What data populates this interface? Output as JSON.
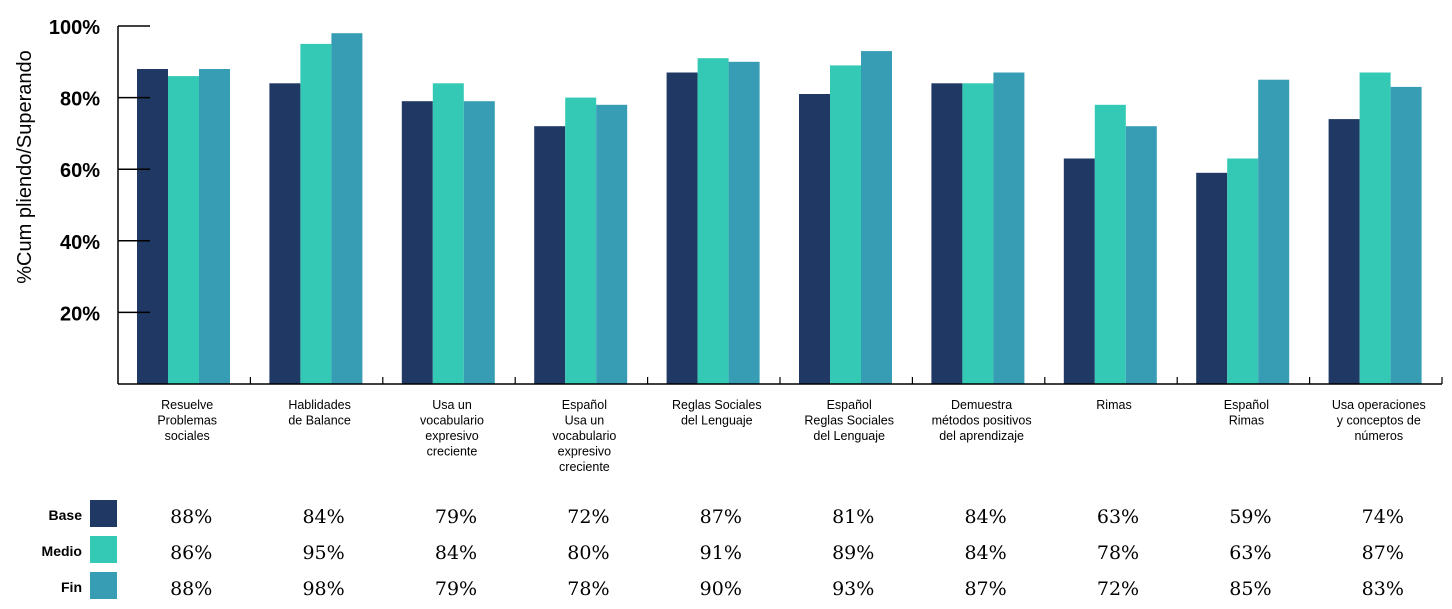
{
  "chart_data": {
    "type": "bar",
    "ylabel": "%Cum pliendo/Superando",
    "ylim": [
      0,
      100
    ],
    "yticks": [
      "20%",
      "40%",
      "60%",
      "80%",
      "100%"
    ],
    "categories": [
      [
        "Resuelve",
        "Problemas",
        "sociales"
      ],
      [
        "Hablidades",
        "de Balance"
      ],
      [
        "Usa un",
        "vocabulario",
        "expresivo",
        "creciente"
      ],
      [
        "Español",
        "",
        "Usa un",
        "vocabulario",
        "expresivo",
        "creciente"
      ],
      [
        "Reglas Sociales",
        "del Lenguaje"
      ],
      [
        "Español",
        "",
        "Reglas Sociales",
        "del Lenguaje"
      ],
      [
        "Demuestra",
        "métodos positivos",
        "del aprendizaje"
      ],
      [
        "Rimas"
      ],
      [
        "Español",
        "",
        "Rimas"
      ],
      [
        "Usa operaciones",
        "y conceptos de",
        "números"
      ]
    ],
    "series": [
      {
        "name": "Base",
        "color": "#1f3864",
        "values": [
          88,
          84,
          79,
          72,
          87,
          81,
          84,
          63,
          59,
          74
        ],
        "labels": [
          "88%",
          "84%",
          "79%",
          "72%",
          "87%",
          "81%",
          "84%",
          "63%",
          "59%",
          "74%"
        ]
      },
      {
        "name": "Medio",
        "color": "#33c9b4",
        "values": [
          86,
          95,
          84,
          80,
          91,
          89,
          84,
          78,
          63,
          87
        ],
        "labels": [
          "86%",
          "95%",
          "84%",
          "80%",
          "91%",
          "89%",
          "84%",
          "78%",
          "63%",
          "87%"
        ]
      },
      {
        "name": "Fin",
        "color": "#379db5",
        "values": [
          88,
          98,
          79,
          78,
          90,
          93,
          87,
          72,
          85,
          83
        ],
        "labels": [
          "88%",
          "98%",
          "79%",
          "78%",
          "90%",
          "93%",
          "87%",
          "72%",
          "85%",
          "83%"
        ]
      }
    ],
    "grid": false,
    "legend": "bottom-left table"
  }
}
